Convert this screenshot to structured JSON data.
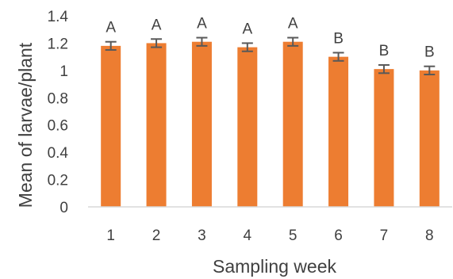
{
  "chart_data": {
    "type": "bar",
    "categories": [
      "1",
      "2",
      "3",
      "4",
      "5",
      "6",
      "7",
      "8"
    ],
    "series": [
      {
        "values": [
          1.18,
          1.2,
          1.21,
          1.17,
          1.21,
          1.1,
          1.01,
          1.0
        ],
        "error": [
          0.03,
          0.03,
          0.03,
          0.03,
          0.03,
          0.03,
          0.03,
          0.03
        ],
        "color": "#ED7D31"
      }
    ],
    "significance_letters": [
      "A",
      "A",
      "A",
      "A",
      "A",
      "B",
      "B",
      "B"
    ],
    "yticks": [
      "0",
      "0.2",
      "0.4",
      "0.6",
      "0.8",
      "1",
      "1.2",
      "1.4"
    ],
    "xlabel": "Sampling week",
    "ylabel": "Mean of larvae/plant",
    "ylim": [
      0,
      1.4
    ],
    "grid": false,
    "legend": "none",
    "errorbar_color": "#595959",
    "axis_color": "#D9D9D9"
  }
}
